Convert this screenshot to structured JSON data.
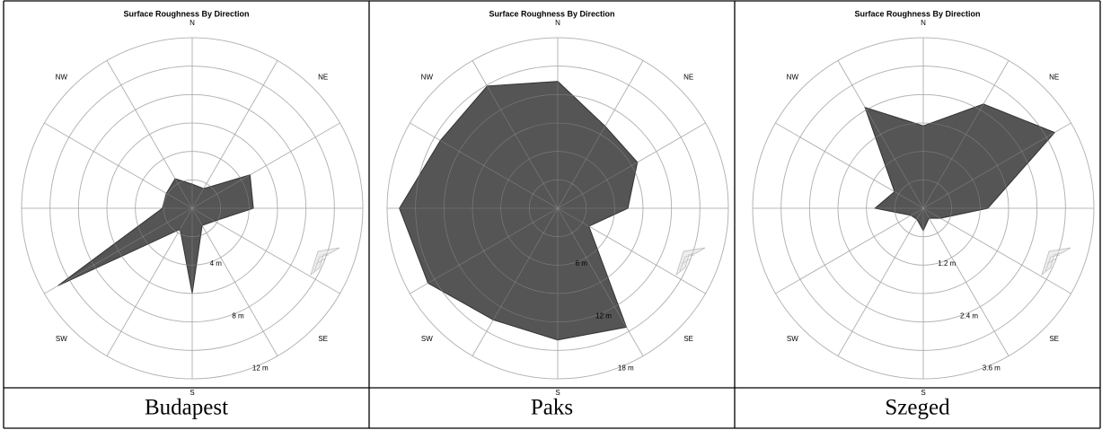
{
  "chart_data": [
    {
      "type": "radar",
      "title": "Surface Roughness By Direction",
      "caption": "Budapest",
      "x": [
        0,
        30,
        60,
        90,
        120,
        150,
        180,
        210,
        240,
        270,
        300,
        330
      ],
      "values": [
        1.7,
        1.6,
        4.7,
        4.3,
        1.8,
        1.4,
        6,
        1.7,
        10.9,
        2.1,
        2.1,
        2.4
      ],
      "xticks": [
        {
          "value": 0,
          "label": "N"
        },
        {
          "value": 45,
          "label": "NE"
        },
        {
          "value": 135,
          "label": "SE"
        },
        {
          "value": 180,
          "label": "S"
        },
        {
          "value": 225,
          "label": "SW"
        },
        {
          "value": 315,
          "label": "NW"
        }
      ],
      "rlim": [
        0,
        12
      ],
      "rgrid": [
        2,
        4,
        6,
        8,
        10,
        12
      ],
      "rticks": [
        {
          "value": 4,
          "label": "4 m"
        },
        {
          "value": 8,
          "label": "8 m"
        },
        {
          "value": 12,
          "label": "12 m"
        }
      ],
      "color": "#555555"
    },
    {
      "type": "radar",
      "title": "Surface Roughness By Direction",
      "caption": "Paks",
      "x": [
        0,
        30,
        60,
        90,
        120,
        150,
        180,
        210,
        240,
        270,
        300,
        330
      ],
      "values": [
        13.4,
        10,
        9.7,
        7.4,
        3.8,
        14.5,
        13.9,
        13.6,
        15.8,
        16.7,
        14.3,
        14.9
      ],
      "xticks": [
        {
          "value": 0,
          "label": "N"
        },
        {
          "value": 45,
          "label": "NE"
        },
        {
          "value": 135,
          "label": "SE"
        },
        {
          "value": 180,
          "label": "S"
        },
        {
          "value": 225,
          "label": "SW"
        },
        {
          "value": 315,
          "label": "NW"
        }
      ],
      "rlim": [
        0,
        18
      ],
      "rgrid": [
        3,
        6,
        9,
        12,
        15,
        18
      ],
      "rticks": [
        {
          "value": 6,
          "label": "6 m"
        },
        {
          "value": 12,
          "label": "12 m"
        },
        {
          "value": 18,
          "label": "18 m"
        }
      ],
      "color": "#555555"
    },
    {
      "type": "radar",
      "title": "Surface Roughness By Direction",
      "caption": "Szeged",
      "x": [
        0,
        30,
        60,
        90,
        120,
        150,
        180,
        210,
        240,
        270,
        300,
        330
      ],
      "values": [
        1.74,
        2.54,
        3.2,
        1.36,
        0.42,
        0.24,
        0.47,
        0.27,
        0.3,
        1.02,
        0.7,
        2.46
      ],
      "xticks": [
        {
          "value": 0,
          "label": "N"
        },
        {
          "value": 45,
          "label": "NE"
        },
        {
          "value": 135,
          "label": "SE"
        },
        {
          "value": 180,
          "label": "S"
        },
        {
          "value": 225,
          "label": "SW"
        },
        {
          "value": 315,
          "label": "NW"
        }
      ],
      "rlim": [
        0,
        3.6
      ],
      "rgrid": [
        0.6,
        1.2,
        1.8,
        2.4,
        3,
        3.6
      ],
      "rticks": [
        {
          "value": 1.2,
          "label": "1.2 m"
        },
        {
          "value": 2.4,
          "label": "2.4 m"
        },
        {
          "value": 3.6,
          "label": "3.6 m"
        }
      ],
      "color": "#555555"
    }
  ]
}
